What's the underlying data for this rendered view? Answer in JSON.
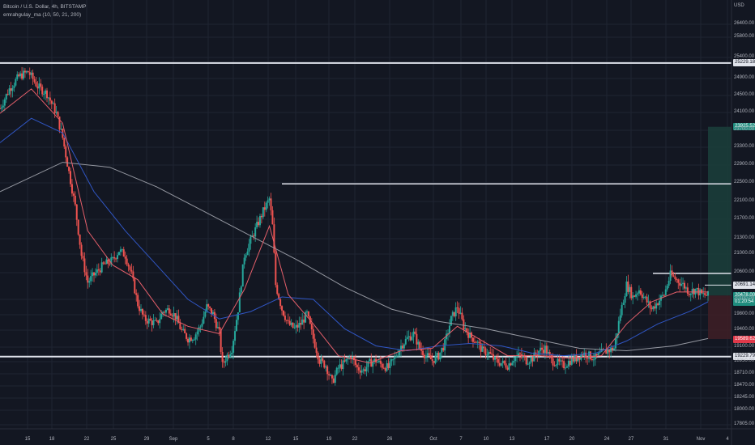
{
  "header": {
    "title": "Bitcoin / U.S. Dollar, 4h, BITSTAMP",
    "indicator": "emrahgulay_ma (10, 50, 21, 200)"
  },
  "currency": "USD",
  "colors": {
    "background": "#131722",
    "grid": "#1f2432",
    "up": "#26a69a",
    "down": "#ef5350",
    "ma_fast": "#f23645",
    "ma_mid": "#e45f6a",
    "ma_blue": "#3056c4",
    "ma_200": "#9598a1",
    "level_line": "#e0e3eb",
    "profit_zone": "#1b3d3a",
    "loss_zone": "#3d1e26"
  },
  "chart_data": {
    "type": "candlestick",
    "y_tick_labels": [
      "26400.00",
      "25800.00",
      "25400.00",
      "24900.00",
      "24500.00",
      "24100.00",
      "23700.00",
      "23300.00",
      "22900.00",
      "22500.00",
      "22100.00",
      "21700.00",
      "21300.00",
      "21000.00",
      "20600.00",
      "20100.00",
      "19800.00",
      "19400.00",
      "19100.00",
      "18950.00",
      "18710.00",
      "18470.00",
      "18245.00",
      "18000.00",
      "17805.00"
    ],
    "x_tick_labels": [
      "15",
      "18",
      "22",
      "25",
      "29",
      "Sep",
      "5",
      "8",
      "12",
      "15",
      "19",
      "22",
      "26",
      "Oct",
      "7",
      "10",
      "13",
      "17",
      "20",
      "24",
      "27",
      "31",
      "Nov",
      "4"
    ],
    "horizontal_levels": [
      {
        "price": 25229.18,
        "label": "25229.18"
      },
      {
        "price": 22760,
        "label": ""
      },
      {
        "price": 20930,
        "label": ""
      },
      {
        "price": 20691.14,
        "label": "20691.14"
      },
      {
        "price": 19229.79,
        "label": "19229.79"
      }
    ],
    "position_tool": {
      "entry": 20478.0,
      "target": 23925.52,
      "stop": 19589.62
    },
    "price_tags": [
      {
        "label": "25229.18",
        "style": "level"
      },
      {
        "label": "23925.52",
        "style": "target"
      },
      {
        "label": "20691.14",
        "style": "level"
      },
      {
        "label": "20478.00",
        "style": "current"
      },
      {
        "label": "01:20:54",
        "style": "current"
      },
      {
        "label": "19589.62",
        "style": "stop"
      },
      {
        "label": "19229.79",
        "style": "level"
      }
    ],
    "close_path": [
      [
        0,
        24300
      ],
      [
        3,
        24700
      ],
      [
        6,
        24950
      ],
      [
        9,
        25050
      ],
      [
        12,
        24750
      ],
      [
        15,
        24600
      ],
      [
        18,
        24200
      ],
      [
        20,
        23700
      ],
      [
        22,
        23000
      ],
      [
        24,
        22300
      ],
      [
        26,
        21300
      ],
      [
        28,
        20750
      ],
      [
        30,
        20900
      ],
      [
        33,
        21100
      ],
      [
        36,
        21200
      ],
      [
        38,
        21400
      ],
      [
        40,
        21300
      ],
      [
        42,
        20900
      ],
      [
        44,
        20300
      ],
      [
        46,
        20000
      ],
      [
        48,
        19950
      ],
      [
        50,
        19900
      ],
      [
        52,
        20150
      ],
      [
        54,
        20200
      ],
      [
        56,
        20050
      ],
      [
        58,
        19750
      ],
      [
        60,
        19600
      ],
      [
        62,
        19650
      ],
      [
        64,
        19850
      ],
      [
        66,
        20250
      ],
      [
        68,
        20100
      ],
      [
        70,
        19700
      ],
      [
        71,
        19050
      ],
      [
        72,
        19200
      ],
      [
        74,
        19400
      ],
      [
        76,
        20200
      ],
      [
        78,
        21300
      ],
      [
        80,
        21600
      ],
      [
        82,
        21900
      ],
      [
        84,
        22200
      ],
      [
        86,
        22450
      ],
      [
        87,
        21900
      ],
      [
        88,
        20700
      ],
      [
        90,
        20200
      ],
      [
        92,
        19900
      ],
      [
        94,
        19800
      ],
      [
        96,
        19900
      ],
      [
        98,
        20100
      ],
      [
        100,
        19600
      ],
      [
        102,
        19150
      ],
      [
        104,
        19050
      ],
      [
        106,
        18700
      ],
      [
        108,
        19000
      ],
      [
        110,
        19100
      ],
      [
        112,
        19250
      ],
      [
        114,
        19000
      ],
      [
        116,
        18950
      ],
      [
        118,
        19100
      ],
      [
        120,
        19150
      ],
      [
        122,
        19050
      ],
      [
        124,
        19000
      ],
      [
        126,
        19200
      ],
      [
        128,
        19450
      ],
      [
        130,
        19600
      ],
      [
        132,
        19700
      ],
      [
        134,
        19400
      ],
      [
        136,
        19250
      ],
      [
        138,
        19150
      ],
      [
        140,
        19250
      ],
      [
        142,
        19500
      ],
      [
        144,
        20000
      ],
      [
        146,
        20250
      ],
      [
        148,
        19850
      ],
      [
        150,
        19650
      ],
      [
        152,
        19550
      ],
      [
        154,
        19350
      ],
      [
        156,
        19300
      ],
      [
        158,
        19150
      ],
      [
        160,
        19100
      ],
      [
        162,
        19050
      ],
      [
        164,
        19200
      ],
      [
        166,
        19250
      ],
      [
        168,
        19150
      ],
      [
        170,
        19200
      ],
      [
        172,
        19350
      ],
      [
        174,
        19400
      ],
      [
        176,
        19150
      ],
      [
        178,
        19100
      ],
      [
        180,
        19050
      ],
      [
        182,
        19150
      ],
      [
        184,
        19200
      ],
      [
        186,
        19300
      ],
      [
        188,
        19250
      ],
      [
        190,
        19200
      ],
      [
        192,
        19300
      ],
      [
        194,
        19350
      ],
      [
        196,
        19400
      ],
      [
        198,
        20100
      ],
      [
        200,
        20700
      ],
      [
        202,
        20450
      ],
      [
        204,
        20600
      ],
      [
        206,
        20400
      ],
      [
        208,
        20200
      ],
      [
        210,
        20350
      ],
      [
        212,
        20500
      ],
      [
        214,
        20900
      ],
      [
        216,
        20800
      ],
      [
        218,
        20700
      ],
      [
        220,
        20550
      ],
      [
        222,
        20600
      ],
      [
        224,
        20500
      ],
      [
        226,
        20478
      ]
    ],
    "ma_200_path": [
      [
        0,
        22600
      ],
      [
        20,
        23200
      ],
      [
        35,
        23100
      ],
      [
        50,
        22700
      ],
      [
        65,
        22200
      ],
      [
        80,
        21700
      ],
      [
        95,
        21200
      ],
      [
        110,
        20650
      ],
      [
        125,
        20200
      ],
      [
        140,
        19950
      ],
      [
        155,
        19800
      ],
      [
        170,
        19600
      ],
      [
        185,
        19400
      ],
      [
        200,
        19350
      ],
      [
        215,
        19450
      ],
      [
        226,
        19600
      ]
    ],
    "ma_50_path": [
      [
        0,
        23600
      ],
      [
        10,
        24100
      ],
      [
        20,
        23800
      ],
      [
        30,
        22600
      ],
      [
        40,
        21800
      ],
      [
        50,
        21100
      ],
      [
        60,
        20400
      ],
      [
        70,
        20000
      ],
      [
        80,
        20150
      ],
      [
        90,
        20450
      ],
      [
        100,
        20400
      ],
      [
        110,
        19800
      ],
      [
        120,
        19450
      ],
      [
        130,
        19350
      ],
      [
        140,
        19450
      ],
      [
        150,
        19500
      ],
      [
        160,
        19450
      ],
      [
        170,
        19300
      ],
      [
        180,
        19250
      ],
      [
        190,
        19300
      ],
      [
        200,
        19550
      ],
      [
        210,
        19900
      ],
      [
        220,
        20150
      ],
      [
        226,
        20350
      ]
    ],
    "ma_21_path": [
      [
        0,
        24200
      ],
      [
        10,
        24700
      ],
      [
        20,
        24000
      ],
      [
        28,
        21800
      ],
      [
        36,
        21100
      ],
      [
        44,
        20800
      ],
      [
        52,
        20100
      ],
      [
        60,
        19850
      ],
      [
        70,
        19700
      ],
      [
        78,
        20600
      ],
      [
        86,
        21900
      ],
      [
        92,
        20500
      ],
      [
        100,
        19900
      ],
      [
        108,
        19250
      ],
      [
        118,
        19100
      ],
      [
        128,
        19350
      ],
      [
        138,
        19400
      ],
      [
        146,
        19850
      ],
      [
        154,
        19550
      ],
      [
        162,
        19250
      ],
      [
        172,
        19250
      ],
      [
        182,
        19200
      ],
      [
        192,
        19250
      ],
      [
        200,
        19900
      ],
      [
        208,
        20350
      ],
      [
        216,
        20550
      ],
      [
        226,
        20550
      ]
    ]
  }
}
